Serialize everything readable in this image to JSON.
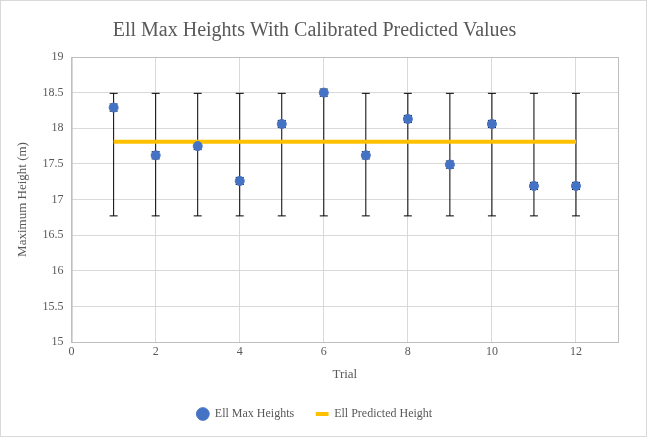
{
  "chart_data": {
    "type": "scatter",
    "title": "Ell Max Heights With Calibrated Predicted Values",
    "x_label": "Trial",
    "y_label": "Maximum Height (m)",
    "x": [
      1,
      2,
      3,
      4,
      5,
      6,
      7,
      8,
      9,
      10,
      11,
      12
    ],
    "series": [
      {
        "name": "Ell Max Heights",
        "type": "scatter",
        "color": "#4472c4",
        "marker": "circle",
        "values": [
          18.29,
          17.62,
          17.75,
          17.26,
          18.06,
          18.5,
          17.62,
          18.13,
          17.49,
          18.06,
          17.19,
          17.19
        ],
        "error": [
          0.05,
          0.05,
          0.05,
          0.05,
          0.05,
          0.05,
          0.05,
          0.05,
          0.05,
          0.05,
          0.05,
          0.05
        ]
      },
      {
        "name": "Ell Predicted Height",
        "type": "line",
        "color": "#ffc000",
        "line_style": "solid",
        "values": [
          17.81,
          17.81,
          17.81,
          17.81,
          17.81,
          17.81,
          17.81,
          17.81,
          17.81,
          17.81,
          17.81,
          17.81
        ],
        "error_plus": [
          0.68,
          0.68,
          0.68,
          0.68,
          0.68,
          0.68,
          0.68,
          0.68,
          0.68,
          0.68,
          0.68,
          0.68
        ],
        "error_minus": [
          1.04,
          1.04,
          1.04,
          1.04,
          1.04,
          1.04,
          1.04,
          1.04,
          1.04,
          1.04,
          1.04,
          1.04
        ]
      }
    ],
    "xlim": [
      0,
      13
    ],
    "xticks": [
      0,
      2,
      4,
      6,
      8,
      10,
      12
    ],
    "ylim": [
      15,
      19
    ],
    "yticks": [
      15,
      15.5,
      16,
      16.5,
      17,
      17.5,
      18,
      18.5,
      19
    ],
    "grid": true,
    "legend": "bottom"
  }
}
